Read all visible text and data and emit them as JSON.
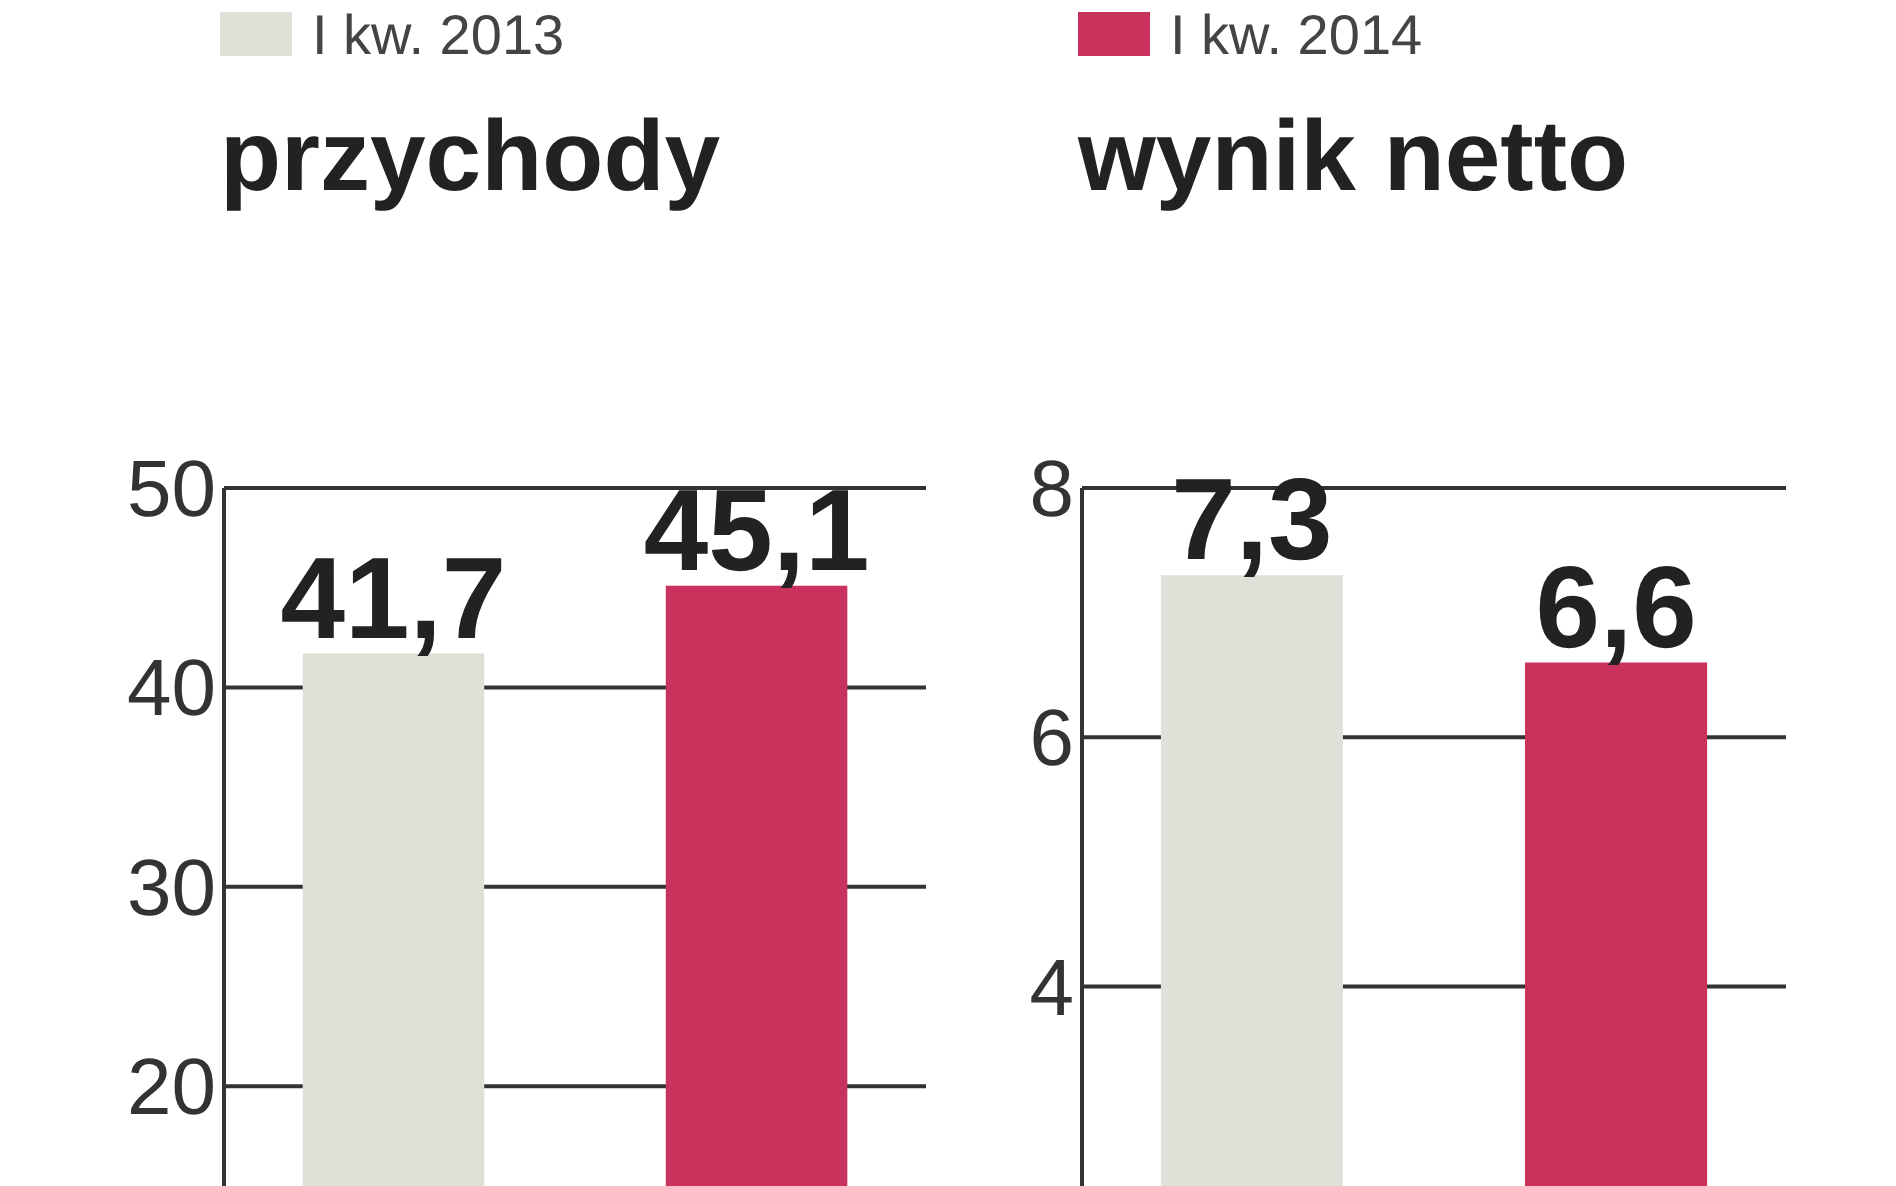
{
  "chart_data": [
    {
      "type": "bar",
      "title": "przychody",
      "categories": [
        null
      ],
      "series": [
        {
          "name": "I kw. 2013",
          "color": "#e0e0d9",
          "values": [
            41.7
          ],
          "value_labels": [
            "41,7"
          ]
        },
        {
          "name": "I kw. 2014",
          "color": "#c8325c",
          "values": [
            45.1
          ],
          "value_labels": [
            "45,1"
          ]
        }
      ],
      "ylim": [
        15,
        50
      ],
      "yticks": [
        20,
        30,
        40,
        50
      ],
      "grid": "y",
      "legend": "top"
    },
    {
      "type": "bar",
      "title": "wynik netto",
      "categories": [
        null
      ],
      "series": [
        {
          "color": "#e0e0d9",
          "values": [
            7.3
          ],
          "value_labels": [
            "7,3"
          ]
        },
        {
          "color": "#c8325c",
          "values": [
            6.6
          ],
          "value_labels": [
            "6,6"
          ]
        }
      ],
      "ylim": [
        2.4,
        8
      ],
      "yticks": [
        4,
        6,
        8
      ],
      "grid": "y"
    }
  ]
}
